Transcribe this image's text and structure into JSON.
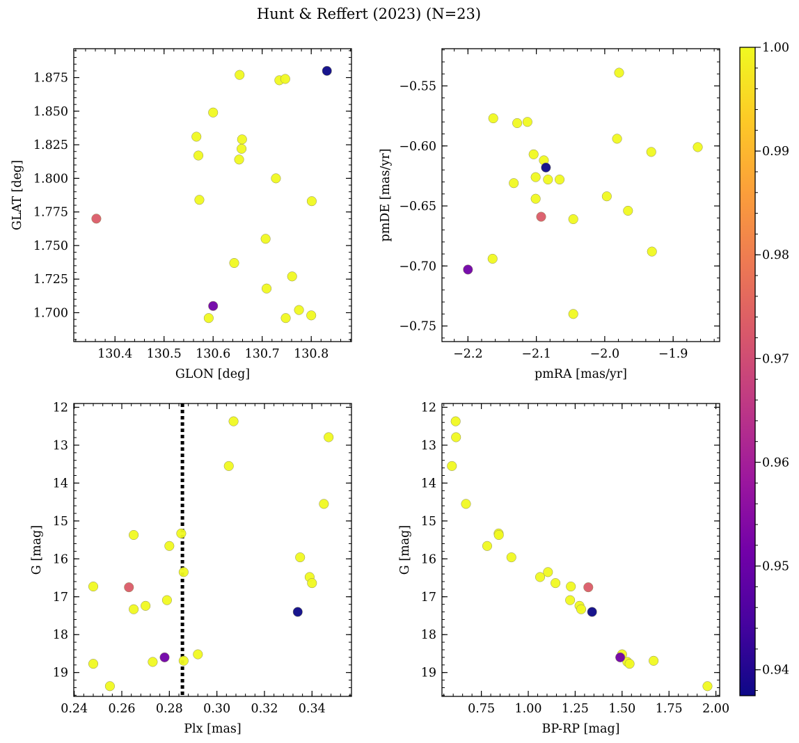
{
  "title": "Hunt & Reffert (2023) (N=23)",
  "colorbar": {
    "range": [
      0.9375,
      1.0
    ],
    "ticks": [
      0.94,
      0.95,
      0.96,
      0.97,
      0.98,
      0.99,
      1.0
    ],
    "tick_labels": [
      "0.94",
      "0.95",
      "0.96",
      "0.97",
      "0.98",
      "0.99",
      "1.00"
    ],
    "colormap": "plasma",
    "colormap_stops": [
      "#0d0887",
      "#46039f",
      "#7201a8",
      "#9c179e",
      "#bd3786",
      "#d8576b",
      "#ed7953",
      "#fb9f3a",
      "#fdca26",
      "#f0f921"
    ]
  },
  "chart_data": [
    {
      "id": "glon-glat",
      "type": "scatter",
      "xlabel": "GLON [deg]",
      "ylabel": "GLAT [deg]",
      "xlim": [
        130.316,
        130.882
      ],
      "ylim": [
        1.6785,
        1.8965
      ],
      "xticks": [
        130.4,
        130.5,
        130.6,
        130.7,
        130.8
      ],
      "xtick_labels": [
        "130.4",
        "130.5",
        "130.6",
        "130.7",
        "130.8"
      ],
      "yticks": [
        1.7,
        1.725,
        1.75,
        1.775,
        1.8,
        1.825,
        1.85,
        1.875
      ],
      "ytick_labels": [
        "1.700",
        "1.725",
        "1.750",
        "1.775",
        "1.800",
        "1.825",
        "1.850",
        "1.875"
      ],
      "x": [
        130.654,
        130.735,
        130.747,
        130.6,
        130.566,
        130.659,
        130.658,
        130.57,
        130.653,
        130.728,
        130.572,
        130.801,
        130.707,
        130.643,
        130.761,
        130.709,
        130.775,
        130.591,
        130.748,
        130.8,
        130.832,
        130.362,
        130.6
      ],
      "y": [
        1.877,
        1.873,
        1.874,
        1.849,
        1.831,
        1.829,
        1.822,
        1.817,
        1.814,
        1.8,
        1.784,
        1.783,
        1.755,
        1.737,
        1.727,
        1.718,
        1.702,
        1.696,
        1.696,
        1.698,
        1.88,
        1.77,
        1.705
      ],
      "c": [
        1.0,
        1.0,
        1.0,
        1.0,
        1.0,
        1.0,
        1.0,
        1.0,
        1.0,
        1.0,
        1.0,
        1.0,
        1.0,
        1.0,
        1.0,
        1.0,
        1.0,
        1.0,
        1.0,
        1.0,
        0.9375,
        0.973,
        0.951
      ]
    },
    {
      "id": "pm",
      "type": "scatter",
      "xlabel": "pmRA [mas/yr]",
      "ylabel": "pmDE [mas/yr]",
      "xlim": [
        -2.238,
        -1.832
      ],
      "ylim": [
        -0.763,
        -0.519
      ],
      "xticks": [
        -2.2,
        -2.1,
        -2.0,
        -1.9
      ],
      "xtick_labels": [
        "−2.2",
        "−2.1",
        "−2.0",
        "−1.9"
      ],
      "yticks": [
        -0.75,
        -0.7,
        -0.65,
        -0.6,
        -0.55
      ],
      "ytick_labels": [
        "−0.75",
        "−0.70",
        "−0.65",
        "−0.60",
        "−0.55"
      ],
      "x": [
        -1.979,
        -2.163,
        -2.128,
        -2.113,
        -1.982,
        -1.932,
        -1.864,
        -2.104,
        -2.089,
        -2.101,
        -2.133,
        -2.083,
        -2.066,
        -1.997,
        -2.101,
        -1.966,
        -2.046,
        -2.164,
        -1.931,
        -2.046,
        -2.086,
        -2.093,
        -2.2
      ],
      "y": [
        -0.539,
        -0.577,
        -0.581,
        -0.58,
        -0.594,
        -0.605,
        -0.601,
        -0.607,
        -0.612,
        -0.626,
        -0.631,
        -0.628,
        -0.628,
        -0.642,
        -0.644,
        -0.654,
        -0.661,
        -0.694,
        -0.688,
        -0.74,
        -0.618,
        -0.659,
        -0.703
      ],
      "c": [
        1.0,
        1.0,
        1.0,
        1.0,
        1.0,
        1.0,
        1.0,
        1.0,
        1.0,
        1.0,
        1.0,
        1.0,
        1.0,
        1.0,
        1.0,
        1.0,
        1.0,
        1.0,
        1.0,
        1.0,
        0.9375,
        0.973,
        0.951
      ]
    },
    {
      "id": "plx-g",
      "type": "scatter",
      "xlabel": "Plx [mas]",
      "ylabel": "G [mag]",
      "xlim": [
        0.2398,
        0.3566
      ],
      "ylim": [
        19.63,
        11.9
      ],
      "invert_y": true,
      "vline": 0.2855,
      "xticks": [
        0.24,
        0.26,
        0.28,
        0.3,
        0.32,
        0.34
      ],
      "xtick_labels": [
        "0.24",
        "0.26",
        "0.28",
        "0.30",
        "0.32",
        "0.34"
      ],
      "yticks": [
        12,
        13,
        14,
        15,
        16,
        17,
        18,
        19
      ],
      "ytick_labels": [
        "12",
        "13",
        "14",
        "15",
        "16",
        "17",
        "18",
        "19"
      ],
      "x": [
        0.307,
        0.347,
        0.305,
        0.345,
        0.265,
        0.285,
        0.28,
        0.335,
        0.286,
        0.339,
        0.34,
        0.248,
        0.279,
        0.27,
        0.265,
        0.292,
        0.273,
        0.286,
        0.248,
        0.255,
        0.334,
        0.263,
        0.278
      ],
      "y": [
        12.37,
        12.79,
        13.55,
        14.55,
        15.37,
        15.33,
        15.66,
        15.96,
        16.35,
        16.48,
        16.64,
        16.73,
        17.09,
        17.24,
        17.33,
        18.52,
        18.72,
        18.69,
        18.77,
        19.36,
        17.4,
        16.75,
        18.6
      ],
      "c": [
        1.0,
        1.0,
        1.0,
        1.0,
        1.0,
        1.0,
        1.0,
        1.0,
        1.0,
        1.0,
        1.0,
        1.0,
        1.0,
        1.0,
        1.0,
        1.0,
        1.0,
        1.0,
        1.0,
        1.0,
        0.9375,
        0.973,
        0.951
      ]
    },
    {
      "id": "cmd",
      "type": "scatter",
      "xlabel": "BP-RP [mag]",
      "ylabel": "G [mag]",
      "xlim": [
        0.54,
        2.02
      ],
      "ylim": [
        19.63,
        11.9
      ],
      "invert_y": true,
      "xticks": [
        0.75,
        1.0,
        1.25,
        1.5,
        1.75,
        2.0
      ],
      "xtick_labels": [
        "0.75",
        "1.00",
        "1.25",
        "1.50",
        "1.75",
        "2.00"
      ],
      "yticks": [
        12,
        13,
        14,
        15,
        16,
        17,
        18,
        19
      ],
      "ytick_labels": [
        "12",
        "13",
        "14",
        "15",
        "16",
        "17",
        "18",
        "19"
      ],
      "x": [
        0.613,
        0.615,
        0.593,
        0.668,
        0.842,
        0.843,
        0.781,
        0.91,
        1.105,
        1.063,
        1.145,
        1.227,
        1.223,
        1.273,
        1.282,
        1.5,
        1.528,
        1.668,
        1.54,
        1.955,
        1.34,
        1.32,
        1.49
      ],
      "y": [
        12.37,
        12.79,
        13.55,
        14.55,
        15.33,
        15.37,
        15.66,
        15.96,
        16.35,
        16.48,
        16.64,
        16.73,
        17.09,
        17.24,
        17.33,
        18.52,
        18.72,
        18.69,
        18.77,
        19.36,
        17.4,
        16.75,
        18.6
      ],
      "c": [
        1.0,
        1.0,
        1.0,
        1.0,
        1.0,
        1.0,
        1.0,
        1.0,
        1.0,
        1.0,
        1.0,
        1.0,
        1.0,
        1.0,
        1.0,
        1.0,
        1.0,
        1.0,
        1.0,
        1.0,
        0.9375,
        0.973,
        0.951
      ]
    }
  ]
}
